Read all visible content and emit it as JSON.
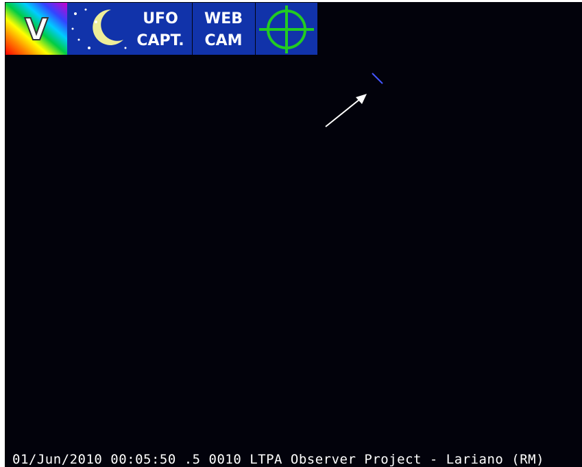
{
  "icons": {
    "logo": "V",
    "ufo_capture": [
      "UFO",
      "CAPT."
    ],
    "webcam": [
      "WEB",
      "CAM"
    ]
  },
  "caption": "01/Jun/2010 00:05:50 .5 0010 LTPA Observer Project - Lariano (RM)"
}
